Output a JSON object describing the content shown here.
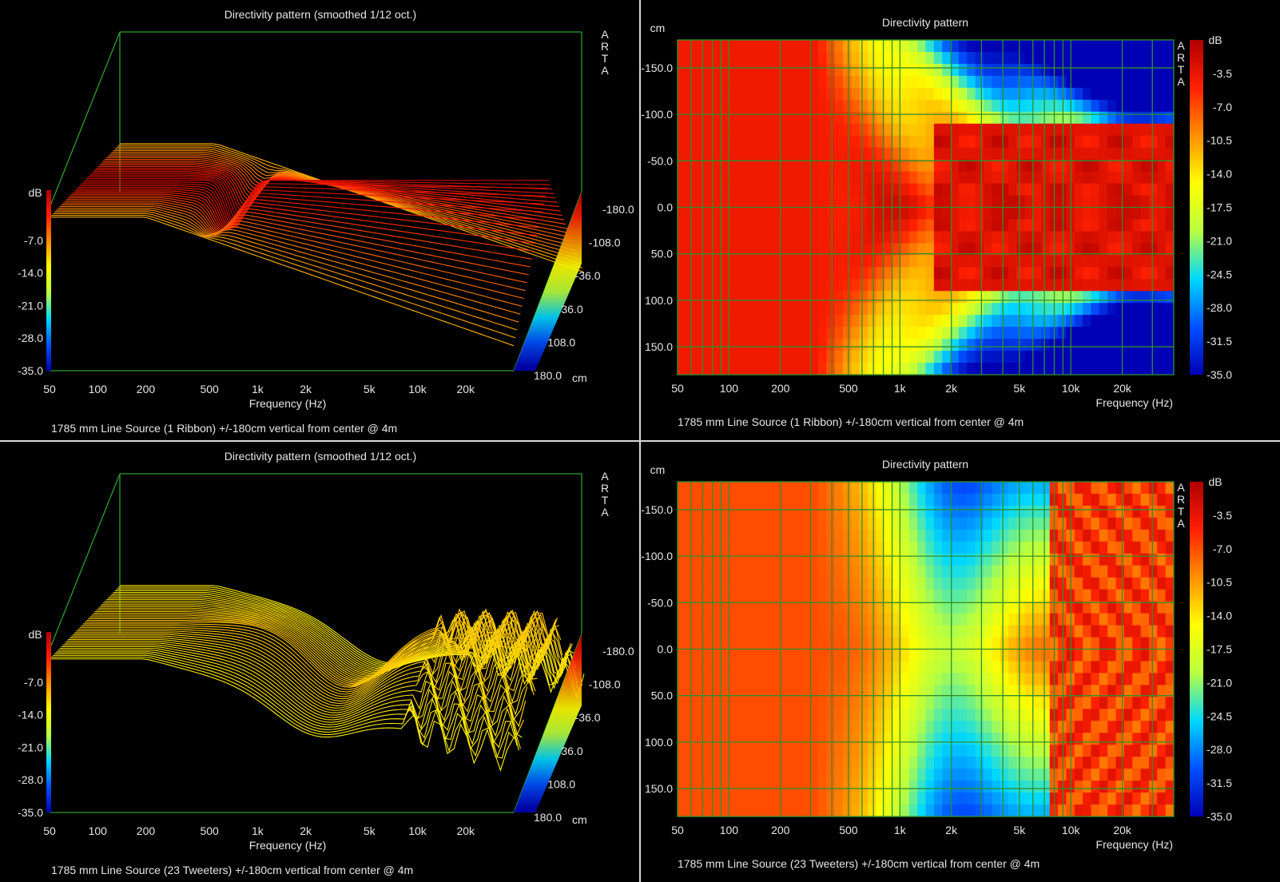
{
  "colors": {
    "background": "#000000",
    "axis_line": "#2e9e2e",
    "grid_line": "#2f8f2f",
    "text": "#e6e6e6",
    "colormap": [
      "#0000b4",
      "#0050ff",
      "#00d8ff",
      "#b8ff40",
      "#ffff00",
      "#ff9000",
      "#ff2000",
      "#b00000"
    ]
  },
  "chart_data": [
    {
      "id": "top-left",
      "type": "waterfall-3d",
      "title": "Directivity pattern (smoothed 1/12 oct.)",
      "watermark": "ARTA",
      "xlabel": "Frequency (Hz)",
      "ylabel": "dB",
      "zlabel": "cm",
      "x_ticks": [
        "50",
        "100",
        "200",
        "500",
        "1k",
        "2k",
        "5k",
        "10k",
        "20k"
      ],
      "y_ticks": [
        "-7.0",
        "-14.0",
        "-21.0",
        "-28.0",
        "-35.0"
      ],
      "z_ticks": [
        "-180.0",
        "-108.0",
        "-36.0",
        "36.0",
        "108.0",
        "180.0"
      ],
      "ylim": [
        -35,
        0
      ],
      "zlim": [
        -180,
        180
      ],
      "footer": "1785 mm Line Source (1 Ribbon) +/-180cm vertical from center @ 4m"
    },
    {
      "id": "top-right",
      "type": "heatmap",
      "title": "Directivity pattern",
      "watermark": "ARTA",
      "xlabel": "Frequency (Hz)",
      "ylabel": "cm",
      "colorbar_label": "dB",
      "x_ticks": [
        "50",
        "100",
        "200",
        "500",
        "1k",
        "2k",
        "5k",
        "10k",
        "20k"
      ],
      "y_ticks": [
        "-150.0",
        "-100.0",
        "-50.0",
        "0.0",
        "50.0",
        "100.0",
        "150.0"
      ],
      "colorbar_ticks": [
        "-3.5",
        "-7.0",
        "-10.5",
        "-14.0",
        "-17.5",
        "-21.0",
        "-24.5",
        "-28.0",
        "-31.5",
        "-35.0"
      ],
      "xlim": [
        50,
        40000
      ],
      "ylim": [
        -180,
        180
      ],
      "clim": [
        -35,
        0
      ],
      "footer": "1785 mm Line Source (1 Ribbon) +/-180cm vertical from center @ 4m"
    },
    {
      "id": "bottom-left",
      "type": "waterfall-3d",
      "title": "Directivity pattern (smoothed 1/12 oct.)",
      "watermark": "ARTA",
      "xlabel": "Frequency (Hz)",
      "ylabel": "dB",
      "zlabel": "cm",
      "x_ticks": [
        "50",
        "100",
        "200",
        "500",
        "1k",
        "2k",
        "5k",
        "10k",
        "20k"
      ],
      "y_ticks": [
        "-7.0",
        "-14.0",
        "-21.0",
        "-28.0",
        "-35.0"
      ],
      "z_ticks": [
        "-180.0",
        "-108.0",
        "-36.0",
        "36.0",
        "108.0",
        "180.0"
      ],
      "ylim": [
        -35,
        0
      ],
      "zlim": [
        -180,
        180
      ],
      "footer": "1785 mm Line Source (23 Tweeters) +/-180cm vertical from center @ 4m"
    },
    {
      "id": "bottom-right",
      "type": "heatmap",
      "title": "Directivity pattern",
      "watermark": "ARTA",
      "xlabel": "Frequency (Hz)",
      "ylabel": "cm",
      "colorbar_label": "dB",
      "x_ticks": [
        "50",
        "100",
        "200",
        "500",
        "1k",
        "2k",
        "5k",
        "10k",
        "20k"
      ],
      "y_ticks": [
        "-150.0",
        "-100.0",
        "-50.0",
        "0.0",
        "50.0",
        "100.0",
        "150.0"
      ],
      "colorbar_ticks": [
        "-3.5",
        "-7.0",
        "-10.5",
        "-14.0",
        "-17.5",
        "-21.0",
        "-24.5",
        "-28.0",
        "-31.5",
        "-35.0"
      ],
      "xlim": [
        50,
        40000
      ],
      "ylim": [
        -180,
        180
      ],
      "clim": [
        -35,
        0
      ],
      "footer": "1785 mm Line Source (23 Tweeters) +/-180cm vertical from center @ 4m"
    }
  ]
}
